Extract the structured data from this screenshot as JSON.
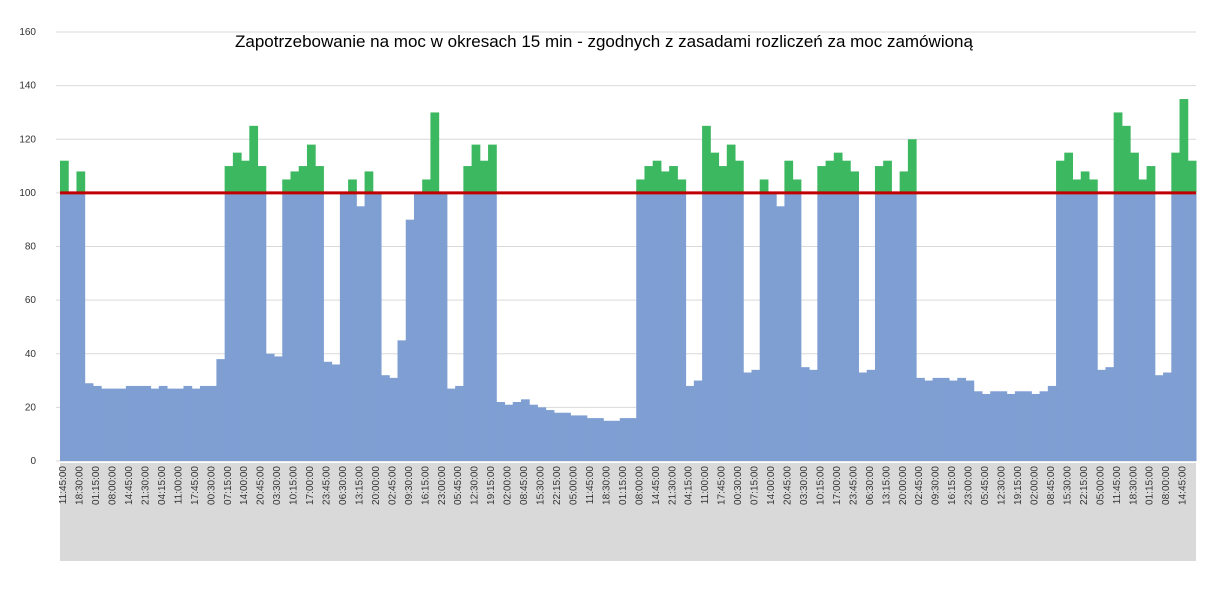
{
  "chart_data": {
    "type": "area",
    "title": "Zapotrzebowanie na moc w okresach 15 min - zgodnych z zasadami rozliczeń za moc zamówioną",
    "categories": [
      "11:45:00",
      null,
      "18:30:00",
      null,
      "01:15:00",
      null,
      "08:00:00",
      null,
      "14:45:00",
      null,
      "21:30:00",
      null,
      "04:15:00",
      null,
      "11:00:00",
      null,
      "17:45:00",
      null,
      "00:30:00",
      null,
      "07:15:00",
      null,
      "14:00:00",
      null,
      "20:45:00",
      null,
      "03:30:00",
      null,
      "10:15:00",
      null,
      "17:00:00",
      null,
      "23:45:00",
      null,
      "06:30:00",
      null,
      "13:15:00",
      null,
      "20:00:00",
      null,
      "02:45:00",
      null,
      "09:30:00",
      null,
      "16:15:00",
      null,
      "23:00:00",
      null,
      "05:45:00",
      null,
      "12:30:00",
      null,
      "19:15:00",
      null,
      "02:00:00",
      null,
      "08:45:00",
      null,
      "15:30:00",
      null,
      "22:15:00",
      null,
      "05:00:00",
      null,
      "11:45:00",
      null,
      "18:30:00",
      null,
      "01:15:00",
      null,
      "08:00:00",
      null,
      "14:45:00",
      null,
      "21:30:00",
      null,
      "04:15:00",
      null,
      "11:00:00",
      null,
      "17:45:00",
      null,
      "00:30:00",
      null,
      "07:15:00",
      null,
      "14:00:00",
      null,
      "20:45:00",
      null,
      "03:30:00",
      null,
      "10:15:00",
      null,
      "17:00:00",
      null,
      "23:45:00",
      null,
      "06:30:00",
      null,
      "13:15:00",
      null,
      "20:00:00",
      null,
      "02:45:00",
      null,
      "09:30:00",
      null,
      "16:15:00",
      null,
      "23:00:00",
      null,
      "05:45:00",
      null,
      "12:30:00",
      null,
      "19:15:00",
      null,
      "02:00:00",
      null,
      "08:45:00",
      null,
      "15:30:00",
      null,
      "22:15:00",
      null,
      "05:00:00",
      null,
      "11:45:00",
      null,
      "18:30:00",
      null,
      "01:15:00",
      null,
      "08:00:00",
      null,
      "14:45:00",
      null
    ],
    "values": [
      112,
      100,
      108,
      29,
      28,
      27,
      27,
      27,
      28,
      28,
      28,
      27,
      28,
      27,
      27,
      28,
      27,
      28,
      28,
      38,
      110,
      115,
      112,
      125,
      110,
      40,
      39,
      105,
      108,
      110,
      118,
      110,
      37,
      36,
      100,
      105,
      95,
      108,
      100,
      32,
      31,
      45,
      90,
      100,
      105,
      130,
      100,
      27,
      28,
      110,
      118,
      112,
      118,
      22,
      21,
      22,
      23,
      21,
      20,
      19,
      18,
      18,
      17,
      17,
      16,
      16,
      15,
      15,
      16,
      16,
      105,
      110,
      112,
      108,
      110,
      105,
      28,
      30,
      125,
      115,
      110,
      118,
      112,
      33,
      34,
      105,
      100,
      95,
      112,
      105,
      35,
      34,
      110,
      112,
      115,
      112,
      108,
      33,
      34,
      110,
      112,
      100,
      108,
      120,
      31,
      30,
      31,
      31,
      30,
      31,
      30,
      26,
      25,
      26,
      26,
      25,
      26,
      26,
      25,
      26,
      28,
      112,
      115,
      105,
      108,
      105,
      34,
      35,
      130,
      125,
      115,
      105,
      110,
      32,
      33,
      115,
      135,
      112
    ],
    "color": "#7f9fd3",
    "over_color": "#3cb860",
    "threshold": {
      "value": 100,
      "color": "#c00000"
    },
    "ylim": [
      0,
      160
    ],
    "yticks": [
      0,
      20,
      40,
      60,
      80,
      100,
      120,
      140,
      160
    ],
    "grid": true
  }
}
